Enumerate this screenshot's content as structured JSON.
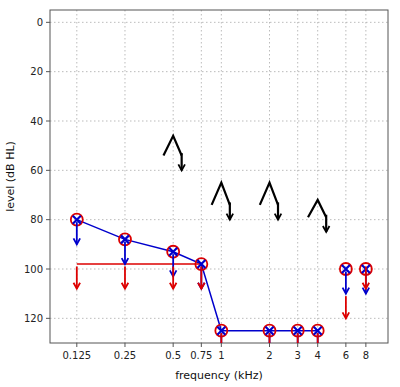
{
  "chart_data": {
    "type": "line",
    "xlabel": "frequency (kHz)",
    "ylabel": "level (dB HL)",
    "log": "x",
    "grid": true,
    "xlim": [
      0.085,
      11
    ],
    "ylim": [
      130,
      -5
    ],
    "xticks": [
      0.125,
      0.25,
      0.5,
      0.75,
      1,
      2,
      3,
      4,
      6,
      8
    ],
    "yticks": [
      0,
      20,
      40,
      60,
      80,
      100,
      120
    ],
    "series": [
      {
        "type": "line",
        "color": "#0000cc",
        "x": [
          0.125,
          0.25,
          0.5,
          0.75,
          1,
          2,
          3,
          4
        ],
        "values": [
          80,
          88,
          93,
          98,
          125,
          125,
          125,
          125
        ]
      },
      {
        "type": "line",
        "color": "#dd0000",
        "x": [
          0.125,
          0.25,
          0.5,
          0.75
        ],
        "values": [
          98,
          98,
          98,
          98
        ]
      },
      {
        "type": "scatter",
        "marker": "circle",
        "color": "#dd0000",
        "x": [
          0.125,
          0.25,
          0.5,
          0.75,
          1,
          2,
          3,
          4,
          6,
          8
        ],
        "values": [
          80,
          88,
          93,
          98,
          125,
          125,
          125,
          125,
          100,
          100
        ]
      },
      {
        "type": "scatter",
        "marker": "x",
        "color": "#0000cc",
        "x": [
          0.125,
          0.25,
          0.5,
          0.75,
          1,
          2,
          3,
          4,
          6,
          8
        ],
        "values": [
          80,
          88,
          93,
          98,
          125,
          125,
          125,
          125,
          100,
          100
        ]
      },
      {
        "type": "scatter",
        "marker": "arrow",
        "color": "#0000cc",
        "x": [
          0.125,
          0.25,
          0.5,
          0.75,
          1,
          2,
          3,
          4,
          6,
          8
        ],
        "values": [
          80,
          88,
          93,
          98,
          125,
          125,
          125,
          125,
          100,
          100
        ]
      },
      {
        "type": "scatter",
        "marker": "arrow",
        "color": "#dd0000",
        "x": [
          0.125,
          0.25,
          0.5,
          0.75,
          1,
          2,
          3,
          4,
          6,
          8
        ],
        "values": [
          98,
          98,
          98,
          98,
          125,
          125,
          125,
          125,
          110,
          98
        ]
      },
      {
        "type": "scatter",
        "marker": "chevron",
        "color": "#000000",
        "x": [
          0.5,
          1,
          2,
          4
        ],
        "values": [
          46,
          65,
          65,
          72
        ],
        "bottom": [
          58,
          78,
          78,
          83
        ]
      }
    ]
  }
}
